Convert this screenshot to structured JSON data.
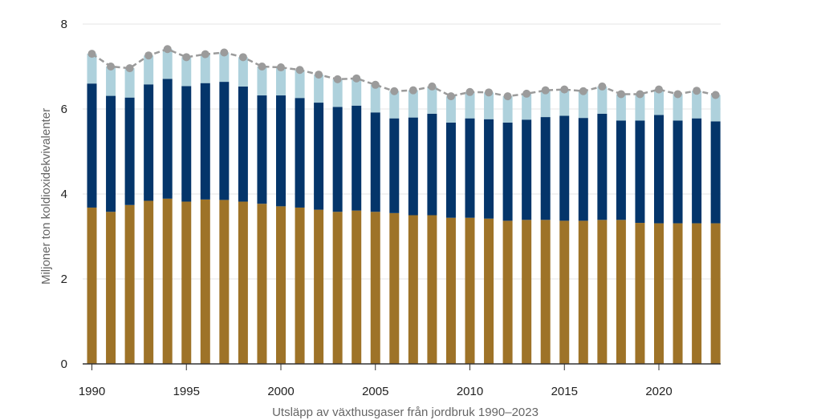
{
  "chart_data": {
    "type": "bar",
    "stacked": true,
    "title": "",
    "xlabel": "Utsläpp av växthusgaser från jordbruk 1990–2023",
    "ylabel": "Miljoner ton koldioxidekvivalenter",
    "ylim": [
      0,
      8
    ],
    "yticks": [
      "0",
      "2",
      "4",
      "6",
      "8"
    ],
    "xticks": [
      "1990",
      "1995",
      "2000",
      "2005",
      "2010",
      "2015",
      "2020"
    ],
    "grid": true,
    "legend": "none",
    "categories": [
      "1990",
      "1991",
      "1992",
      "1993",
      "1994",
      "1995",
      "1996",
      "1997",
      "1998",
      "1999",
      "2000",
      "2001",
      "2002",
      "2003",
      "2004",
      "2005",
      "2006",
      "2007",
      "2008",
      "2009",
      "2010",
      "2011",
      "2012",
      "2013",
      "2014",
      "2015",
      "2016",
      "2017",
      "2018",
      "2019",
      "2020",
      "2021",
      "2022",
      "2023"
    ],
    "series": [
      {
        "name": "bottom",
        "color": "#9e7328",
        "values": [
          3.68,
          3.58,
          3.74,
          3.84,
          3.89,
          3.82,
          3.87,
          3.86,
          3.82,
          3.77,
          3.71,
          3.68,
          3.63,
          3.58,
          3.61,
          3.58,
          3.55,
          3.5,
          3.5,
          3.44,
          3.44,
          3.42,
          3.37,
          3.39,
          3.39,
          3.37,
          3.37,
          3.39,
          3.39,
          3.32,
          3.31,
          3.31,
          3.31,
          3.31
        ]
      },
      {
        "name": "middle",
        "color": "#04356a",
        "values": [
          2.92,
          2.73,
          2.53,
          2.74,
          2.82,
          2.72,
          2.74,
          2.78,
          2.71,
          2.55,
          2.61,
          2.58,
          2.52,
          2.47,
          2.47,
          2.34,
          2.23,
          2.3,
          2.39,
          2.24,
          2.34,
          2.34,
          2.31,
          2.36,
          2.42,
          2.47,
          2.42,
          2.5,
          2.34,
          2.41,
          2.55,
          2.42,
          2.47,
          2.4
        ]
      },
      {
        "name": "top",
        "color": "#aed1dc",
        "values": [
          0.7,
          0.69,
          0.69,
          0.68,
          0.7,
          0.68,
          0.68,
          0.69,
          0.69,
          0.68,
          0.66,
          0.66,
          0.66,
          0.65,
          0.64,
          0.65,
          0.64,
          0.64,
          0.64,
          0.62,
          0.62,
          0.63,
          0.62,
          0.61,
          0.63,
          0.62,
          0.63,
          0.64,
          0.62,
          0.62,
          0.6,
          0.62,
          0.65,
          0.62
        ]
      }
    ],
    "total": {
      "name": "total",
      "color": "#9b9b9b",
      "values": [
        7.3,
        7.0,
        6.96,
        7.26,
        7.41,
        7.22,
        7.29,
        7.33,
        7.22,
        7.0,
        6.98,
        6.92,
        6.81,
        6.7,
        6.72,
        6.57,
        6.42,
        6.44,
        6.53,
        6.3,
        6.4,
        6.39,
        6.3,
        6.36,
        6.44,
        6.46,
        6.42,
        6.53,
        6.35,
        6.35,
        6.46,
        6.35,
        6.43,
        6.33
      ]
    }
  }
}
